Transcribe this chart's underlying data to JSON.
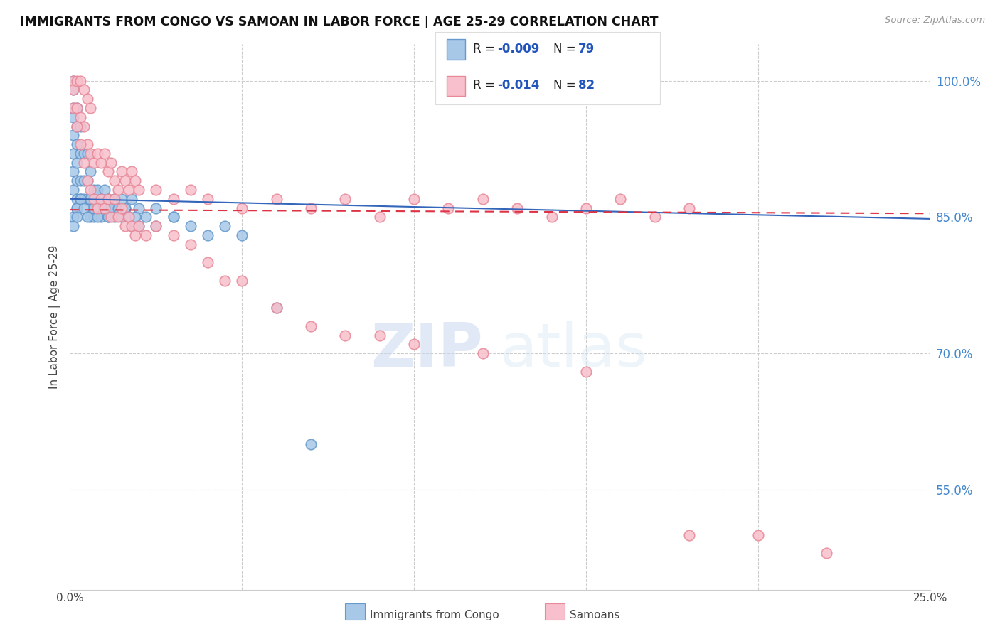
{
  "title": "IMMIGRANTS FROM CONGO VS SAMOAN IN LABOR FORCE | AGE 25-29 CORRELATION CHART",
  "source": "Source: ZipAtlas.com",
  "ylabel": "In Labor Force | Age 25-29",
  "right_yticks": [
    1.0,
    0.85,
    0.7,
    0.55
  ],
  "right_yticklabels": [
    "100.0%",
    "85.0%",
    "70.0%",
    "55.0%"
  ],
  "xmin": 0.0,
  "xmax": 0.25,
  "ymin": 0.44,
  "ymax": 1.04,
  "watermark": "ZIPatlas",
  "congo_color": "#a8c8e8",
  "congo_edge_color": "#6699cc",
  "samoan_color": "#f8c0cc",
  "samoan_edge_color": "#e88898",
  "congo_trend_color": "#3366bb",
  "samoan_trend_color": "#dd3344",
  "congo_x": [
    0.001,
    0.001,
    0.001,
    0.001,
    0.001,
    0.001,
    0.001,
    0.001,
    0.002,
    0.002,
    0.002,
    0.002,
    0.002,
    0.002,
    0.002,
    0.003,
    0.003,
    0.003,
    0.003,
    0.004,
    0.004,
    0.004,
    0.005,
    0.005,
    0.005,
    0.006,
    0.006,
    0.006,
    0.007,
    0.007,
    0.007,
    0.008,
    0.008,
    0.009,
    0.009,
    0.01,
    0.01,
    0.011,
    0.011,
    0.012,
    0.013,
    0.014,
    0.015,
    0.016,
    0.018,
    0.02,
    0.022,
    0.025,
    0.03,
    0.001,
    0.001,
    0.002,
    0.002,
    0.003,
    0.004,
    0.005,
    0.006,
    0.007,
    0.008,
    0.009,
    0.01,
    0.011,
    0.012,
    0.013,
    0.014,
    0.015,
    0.016,
    0.017,
    0.018,
    0.019,
    0.02,
    0.025,
    0.03,
    0.035,
    0.04,
    0.045,
    0.05,
    0.06,
    0.07
  ],
  "congo_y": [
    1.0,
    0.99,
    0.97,
    0.96,
    0.94,
    0.92,
    0.9,
    0.88,
    0.97,
    0.95,
    0.93,
    0.91,
    0.89,
    0.87,
    0.86,
    0.95,
    0.92,
    0.89,
    0.87,
    0.92,
    0.89,
    0.87,
    0.92,
    0.89,
    0.87,
    0.9,
    0.87,
    0.85,
    0.88,
    0.86,
    0.85,
    0.88,
    0.86,
    0.87,
    0.85,
    0.88,
    0.86,
    0.87,
    0.85,
    0.86,
    0.87,
    0.86,
    0.87,
    0.86,
    0.87,
    0.86,
    0.85,
    0.86,
    0.85,
    0.85,
    0.84,
    0.86,
    0.85,
    0.87,
    0.86,
    0.85,
    0.87,
    0.86,
    0.85,
    0.87,
    0.86,
    0.85,
    0.86,
    0.85,
    0.86,
    0.85,
    0.86,
    0.85,
    0.84,
    0.85,
    0.84,
    0.84,
    0.85,
    0.84,
    0.83,
    0.84,
    0.83,
    0.75,
    0.6
  ],
  "samoan_x": [
    0.001,
    0.001,
    0.001,
    0.002,
    0.002,
    0.003,
    0.003,
    0.004,
    0.004,
    0.005,
    0.005,
    0.006,
    0.006,
    0.007,
    0.008,
    0.009,
    0.01,
    0.011,
    0.012,
    0.013,
    0.014,
    0.015,
    0.016,
    0.017,
    0.018,
    0.019,
    0.02,
    0.025,
    0.03,
    0.035,
    0.04,
    0.05,
    0.06,
    0.07,
    0.08,
    0.09,
    0.1,
    0.11,
    0.12,
    0.13,
    0.14,
    0.15,
    0.16,
    0.17,
    0.18,
    0.002,
    0.003,
    0.004,
    0.005,
    0.006,
    0.007,
    0.008,
    0.009,
    0.01,
    0.011,
    0.012,
    0.013,
    0.014,
    0.015,
    0.016,
    0.017,
    0.018,
    0.019,
    0.02,
    0.022,
    0.025,
    0.03,
    0.035,
    0.04,
    0.045,
    0.05,
    0.06,
    0.07,
    0.08,
    0.09,
    0.1,
    0.12,
    0.15,
    0.18,
    0.2,
    0.22
  ],
  "samoan_y": [
    1.0,
    0.99,
    0.97,
    1.0,
    0.97,
    1.0,
    0.96,
    0.99,
    0.95,
    0.98,
    0.93,
    0.97,
    0.92,
    0.91,
    0.92,
    0.91,
    0.92,
    0.9,
    0.91,
    0.89,
    0.88,
    0.9,
    0.89,
    0.88,
    0.9,
    0.89,
    0.88,
    0.88,
    0.87,
    0.88,
    0.87,
    0.86,
    0.87,
    0.86,
    0.87,
    0.85,
    0.87,
    0.86,
    0.87,
    0.86,
    0.85,
    0.86,
    0.87,
    0.85,
    0.86,
    0.95,
    0.93,
    0.91,
    0.89,
    0.88,
    0.87,
    0.86,
    0.87,
    0.86,
    0.87,
    0.85,
    0.87,
    0.85,
    0.86,
    0.84,
    0.85,
    0.84,
    0.83,
    0.84,
    0.83,
    0.84,
    0.83,
    0.82,
    0.8,
    0.78,
    0.78,
    0.75,
    0.73,
    0.72,
    0.72,
    0.71,
    0.7,
    0.68,
    0.5,
    0.5,
    0.48
  ]
}
